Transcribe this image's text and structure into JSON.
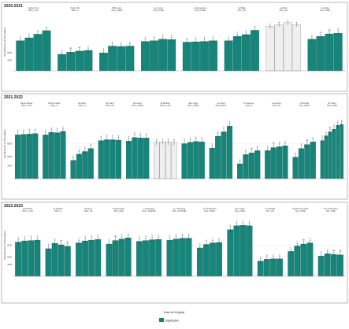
{
  "colors": {
    "bar": "#17857a",
    "control": "#efefef",
    "control_stroke": "#777777",
    "grid": "#e6e6e6",
    "panel_border": "#8a8a8a"
  },
  "footer": {
    "xlabel": "Dosis de N (kg/ha)",
    "legend_label": "Significativo"
  },
  "chart_data": [
    {
      "type": "bar",
      "title": "2020-2021",
      "ylabel": "Rendimiento 14.5% (kg/ha)",
      "yticks": [
        "3000",
        "5000"
      ],
      "ylim": [
        0,
        16000
      ],
      "groups": [
        {
          "name": "Santa Cruz",
          "subtitle": "NDV_LI-SO",
          "values": [
            8400,
            9200,
            10200,
            11200
          ],
          "labels": [
            "b",
            "b",
            "a",
            "a"
          ],
          "control": false
        },
        {
          "name": "Sede JCE",
          "subtitle": "NDV_LI",
          "values": [
            4600,
            5200,
            5500,
            5700
          ],
          "labels": [
            "b",
            "ab",
            "ab",
            "a"
          ],
          "control": false
        },
        {
          "name": "SPE Lotes",
          "subtitle": "SA1_LIPRE",
          "values": [
            5000,
            6900,
            6800,
            6900
          ],
          "labels": [
            "b",
            "a",
            "a",
            "a"
          ],
          "control": false
        },
        {
          "name": "La Lucera",
          "subtitle": "SA1_PCRE",
          "values": [
            8200,
            8400,
            8800,
            8700
          ],
          "labels": [
            "b",
            "a",
            "a",
            "a"
          ],
          "control": false
        },
        {
          "name": "La Esperanza",
          "subtitle": "SA1_PCRE",
          "values": [
            8000,
            8100,
            8200,
            8400
          ],
          "labels": [
            "a",
            "a",
            "a",
            "a"
          ],
          "control": false
        },
        {
          "name": "La Bella",
          "subtitle": "SA1_LIN",
          "values": [
            8400,
            9600,
            10100,
            11300
          ],
          "labels": [
            "c",
            "b",
            "b",
            "a"
          ],
          "control": false
        },
        {
          "name": "La Mina",
          "subtitle": "SA1_LIN",
          "values": [
            12400,
            12900,
            13400,
            12900
          ],
          "labels": [
            "",
            "",
            "",
            ""
          ],
          "control": true
        },
        {
          "name": "La Adela",
          "subtitle": "SA1_LPRE",
          "values": [
            8800,
            9600,
            10300,
            10500
          ],
          "labels": [
            "b",
            "ab",
            "ab",
            "a"
          ],
          "control": false
        }
      ]
    },
    {
      "type": "bar",
      "title": "2021-2022",
      "ylabel": "Rendimiento 14.5% (kg/ha)",
      "yticks": [
        "3000",
        "5000",
        "8000"
      ],
      "ylim": [
        0,
        16000
      ],
      "groups": [
        {
          "name": "Santa Teresa",
          "subtitle": "NDV_LI-SO",
          "values": [
            10000,
            10100,
            10200,
            10300
          ],
          "labels": [
            "a",
            "a",
            "a",
            "a"
          ],
          "control": false
        },
        {
          "name": "Peña Grande",
          "subtitle": "NDV_LI",
          "values": [
            10000,
            10600,
            10500,
            10800
          ],
          "labels": [
            "a",
            "a",
            "a",
            "a"
          ],
          "control": false
        },
        {
          "name": "El Ceibo",
          "subtitle": "NDV_LI",
          "values": [
            4200,
            5600,
            6200,
            6900
          ],
          "labels": [
            "c",
            "b",
            "b",
            "a"
          ],
          "control": false
        },
        {
          "name": "El Ombú",
          "subtitle": "NDV_SS",
          "values": [
            8700,
            8900,
            8900,
            8800
          ],
          "labels": [
            "a",
            "a",
            "a",
            "a"
          ],
          "control": false
        },
        {
          "name": "El Lucero",
          "subtitle": "NDV_LIPRE",
          "values": [
            8600,
            9400,
            9300,
            9300
          ],
          "labels": [
            "a",
            "a",
            "a",
            "a"
          ],
          "control": false
        },
        {
          "name": "El Mirador",
          "subtitle": "NDV_LI-SO",
          "values": [
            8300,
            8400,
            8400,
            8300
          ],
          "labels": [
            "",
            "",
            "",
            ""
          ],
          "control": true
        },
        {
          "name": "San Jorge",
          "subtitle": "NDV_CPRE",
          "values": [
            8000,
            8300,
            8500,
            8400
          ],
          "labels": [
            "a",
            "a",
            "a",
            "a"
          ],
          "control": false
        },
        {
          "name": "La Rural",
          "subtitle": "NDV_ESTA",
          "values": [
            7000,
            9700,
            10700,
            12000
          ],
          "labels": [
            "c",
            "b",
            "b",
            "a"
          ],
          "control": false
        },
        {
          "name": "Tio Dengue",
          "subtitle": "SA1_LI",
          "values": [
            3400,
            5500,
            5900,
            6400
          ],
          "labels": [
            "c",
            "b",
            "ab",
            "a"
          ],
          "control": false
        },
        {
          "name": "La Aurora",
          "subtitle": "SA1_LIN",
          "values": [
            6400,
            7100,
            7300,
            7500
          ],
          "labels": [
            "b",
            "ab",
            "a",
            "a"
          ],
          "control": false
        },
        {
          "name": "La Florida",
          "subtitle": "SA1_LPRE",
          "values": [
            4900,
            6900,
            7800,
            8400
          ],
          "labels": [
            "c",
            "b",
            "ab",
            "a"
          ],
          "control": false
        },
        {
          "name": "El Trébol",
          "subtitle": "SA1_LPRE",
          "values": [
            8700,
            9800,
            10700,
            11300,
            12200,
            12400
          ],
          "labels": [
            "d",
            "c",
            "bc",
            "b",
            "a",
            "a"
          ],
          "control": false
        }
      ]
    },
    {
      "type": "bar",
      "title": "2022-2023",
      "ylabel": "Rendimiento 14.5% (kg/ha)",
      "yticks": [
        "3000",
        "5000",
        "8000"
      ],
      "ylim": [
        0,
        16000
      ],
      "groups": [
        {
          "name": "El Rosario",
          "subtitle": "NDV_LI-SO",
          "values": [
            8800,
            9100,
            9200,
            9300
          ],
          "labels": [
            "a",
            "a",
            "a",
            "a"
          ],
          "control": false
        },
        {
          "name": "El Paraíso",
          "subtitle": "NDV_LI",
          "values": [
            7100,
            8500,
            8100,
            7700
          ],
          "labels": [
            "b",
            "a",
            "ab",
            "ab"
          ],
          "control": false
        },
        {
          "name": "Reserva",
          "subtitle": "NDV_SS",
          "values": [
            8600,
            9100,
            9300,
            9500
          ],
          "labels": [
            "a",
            "a",
            "a",
            "a"
          ],
          "control": false
        },
        {
          "name": "El Recuerdo",
          "subtitle": "NDV_PRE",
          "values": [
            8300,
            9200,
            9600,
            9900
          ],
          "labels": [
            "b",
            "ab",
            "a",
            "a"
          ],
          "control": false
        },
        {
          "name": "La Agustina",
          "subtitle": "SA1_LISOPRE",
          "values": [
            9000,
            9200,
            9400,
            9500
          ],
          "labels": [
            "a",
            "a",
            "a",
            "a"
          ],
          "control": false
        },
        {
          "name": "La Tranquera",
          "subtitle": "SA1_LISOPRE",
          "values": [
            9300,
            9600,
            9800,
            9800
          ],
          "labels": [
            "a",
            "a",
            "a",
            "a"
          ],
          "control": false
        },
        {
          "name": "La Providencia",
          "subtitle": "SA1_PCRE",
          "values": [
            7300,
            8200,
            8600,
            8700
          ],
          "labels": [
            "b",
            "a",
            "a",
            "a"
          ],
          "control": false
        },
        {
          "name": "Los Cuatro",
          "subtitle": "SA1_LPRE",
          "values": [
            12000,
            13000,
            13100,
            13000
          ],
          "labels": [
            "a",
            "a",
            "a",
            "a"
          ],
          "control": false
        },
        {
          "name": "La Cañada",
          "subtitle": "SA1_LIN",
          "values": [
            3900,
            4400,
            4500,
            4500
          ],
          "labels": [
            "a",
            "a",
            "a",
            "a"
          ],
          "control": false
        },
        {
          "name": "Monte del Cabral",
          "subtitle": "SA1_LPRE",
          "values": [
            6400,
            7800,
            8300,
            8600
          ],
          "labels": [
            "c",
            "b",
            "ab",
            "a"
          ],
          "control": false
        },
        {
          "name": "Fin de Semana",
          "subtitle": "SA1_PRE",
          "values": [
            5200,
            5800,
            5600,
            5500
          ],
          "labels": [
            "b",
            "a",
            "ab",
            "ab"
          ],
          "control": false
        }
      ]
    }
  ]
}
